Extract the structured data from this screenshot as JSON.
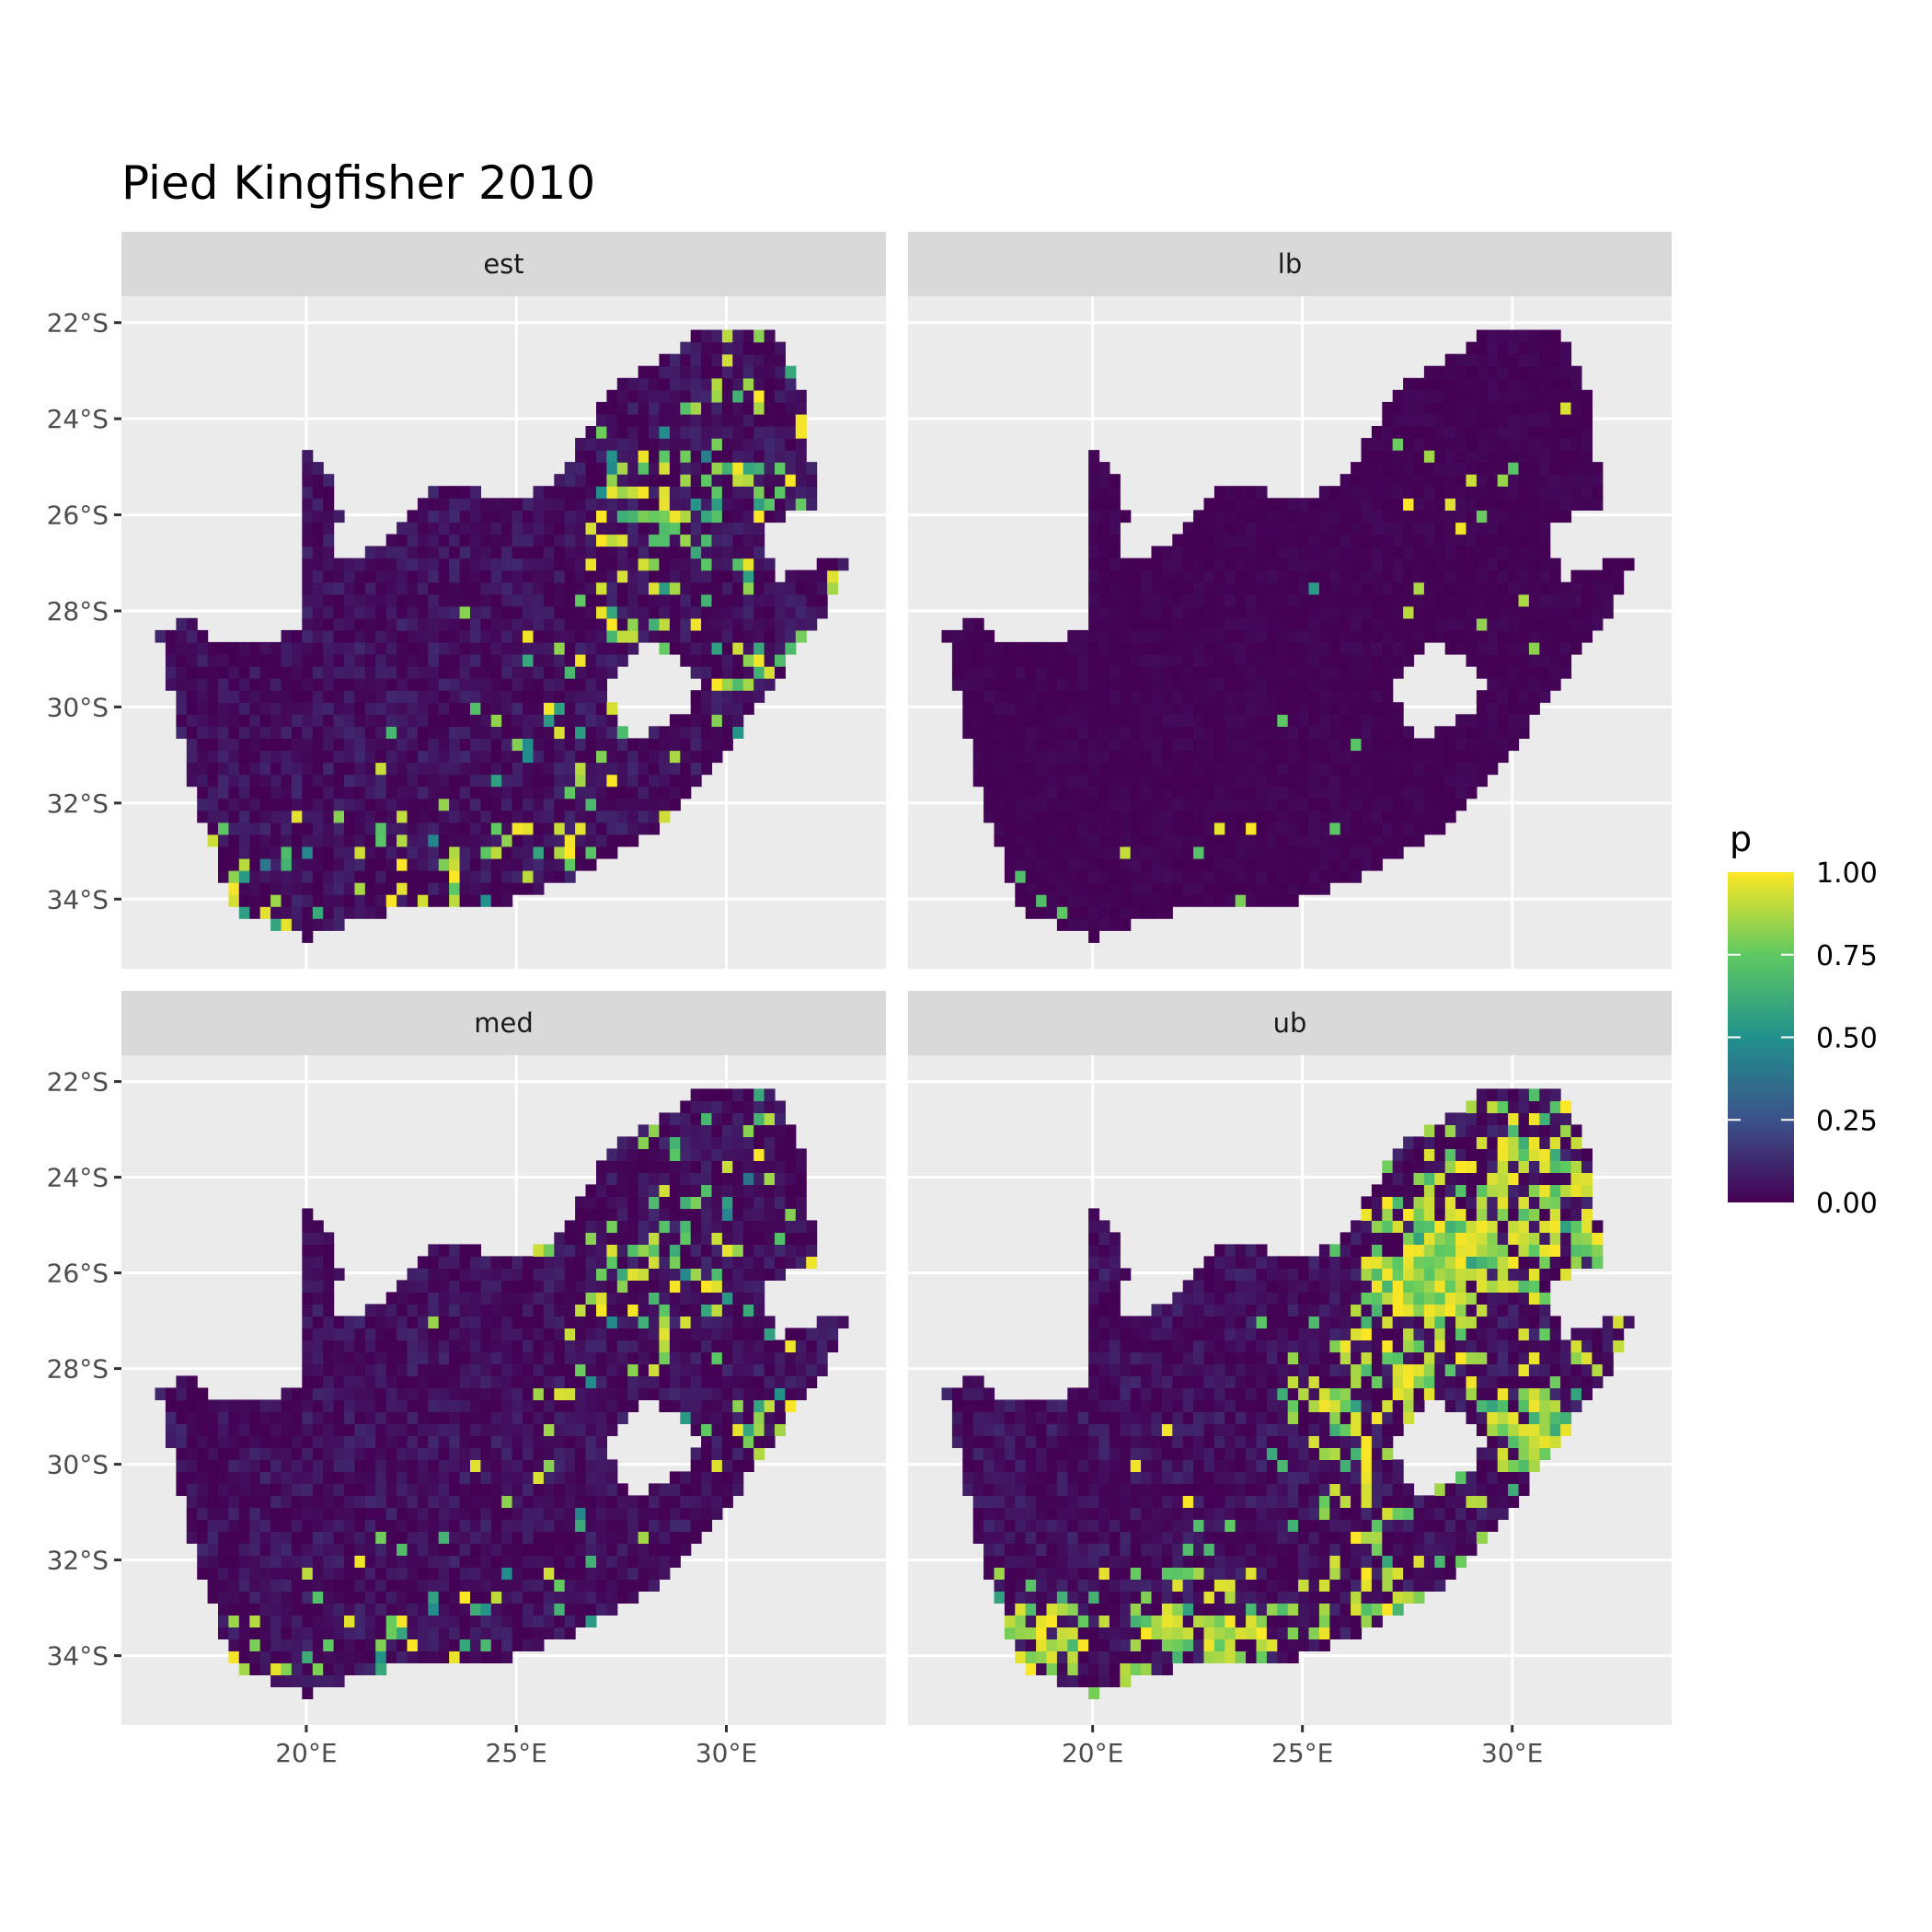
{
  "chart_data": {
    "type": "heatmap",
    "title": "Pied Kingfisher 2010",
    "facets": [
      "est",
      "lb",
      "med",
      "ub"
    ],
    "xlim": [
      15.6,
      33.8
    ],
    "ylim": [
      -35.45,
      -21.45
    ],
    "x_ticks": [
      "20°E",
      "25°E",
      "30°E"
    ],
    "x_tick_values": [
      20,
      25,
      30
    ],
    "y_ticks": [
      "22°S",
      "24°S",
      "26°S",
      "28°S",
      "30°S",
      "32°S",
      "34°S"
    ],
    "y_tick_values": [
      -22,
      -24,
      -26,
      -28,
      -30,
      -32,
      -34
    ],
    "grid": true,
    "legend": {
      "title": "p",
      "position": "right",
      "colormap": "viridis",
      "range": [
        0,
        1
      ],
      "ticks": [
        "0.00",
        "0.25",
        "0.50",
        "0.75",
        "1.00"
      ],
      "tick_values": [
        0,
        0.25,
        0.5,
        0.75,
        1
      ]
    },
    "colors": {
      "panel_background": "#ebebeb",
      "strip_background": "#d9d9d9",
      "viridis": [
        "#440154",
        "#3b528b",
        "#21918c",
        "#5ec962",
        "#fde725"
      ]
    },
    "region_outline_lonlat": [
      [
        16.5,
        -28.5
      ],
      [
        17.1,
        -28.1
      ],
      [
        18.1,
        -28.8
      ],
      [
        19.5,
        -28.5
      ],
      [
        20.0,
        -28.3
      ],
      [
        20.0,
        -24.75
      ],
      [
        20.5,
        -25.1
      ],
      [
        20.8,
        -26.1
      ],
      [
        20.6,
        -26.8
      ],
      [
        21.2,
        -26.9
      ],
      [
        21.8,
        -26.6
      ],
      [
        22.6,
        -25.8
      ],
      [
        22.9,
        -25.5
      ],
      [
        23.7,
        -25.3
      ],
      [
        24.7,
        -25.7
      ],
      [
        25.6,
        -25.5
      ],
      [
        26.3,
        -24.8
      ],
      [
        27.1,
        -23.5
      ],
      [
        28.0,
        -23.0
      ],
      [
        29.5,
        -22.1
      ],
      [
        31.2,
        -22.25
      ],
      [
        31.9,
        -23.5
      ],
      [
        32.1,
        -25.9
      ],
      [
        30.9,
        -26.1
      ],
      [
        30.8,
        -26.6
      ],
      [
        31.2,
        -27.3
      ],
      [
        32.1,
        -27.1
      ],
      [
        32.1,
        -26.9
      ],
      [
        32.9,
        -26.9
      ],
      [
        32.1,
        -28.4
      ],
      [
        30.9,
        -29.7
      ],
      [
        30.0,
        -31.0
      ],
      [
        28.4,
        -32.5
      ],
      [
        26.6,
        -33.5
      ],
      [
        24.8,
        -34.05
      ],
      [
        22.1,
        -34.2
      ],
      [
        20.0,
        -34.8
      ],
      [
        18.2,
        -34.2
      ],
      [
        17.8,
        -33.0
      ],
      [
        17.6,
        -32.8
      ],
      [
        16.5,
        -28.5
      ]
    ],
    "region_hole_lonlat": [
      [
        27.1,
        -29.55
      ],
      [
        27.5,
        -29.1
      ],
      [
        28.1,
        -28.6
      ],
      [
        29.0,
        -29.1
      ],
      [
        29.4,
        -29.6
      ],
      [
        29.0,
        -30.1
      ],
      [
        28.1,
        -30.6
      ],
      [
        27.5,
        -30.5
      ]
    ]
  }
}
